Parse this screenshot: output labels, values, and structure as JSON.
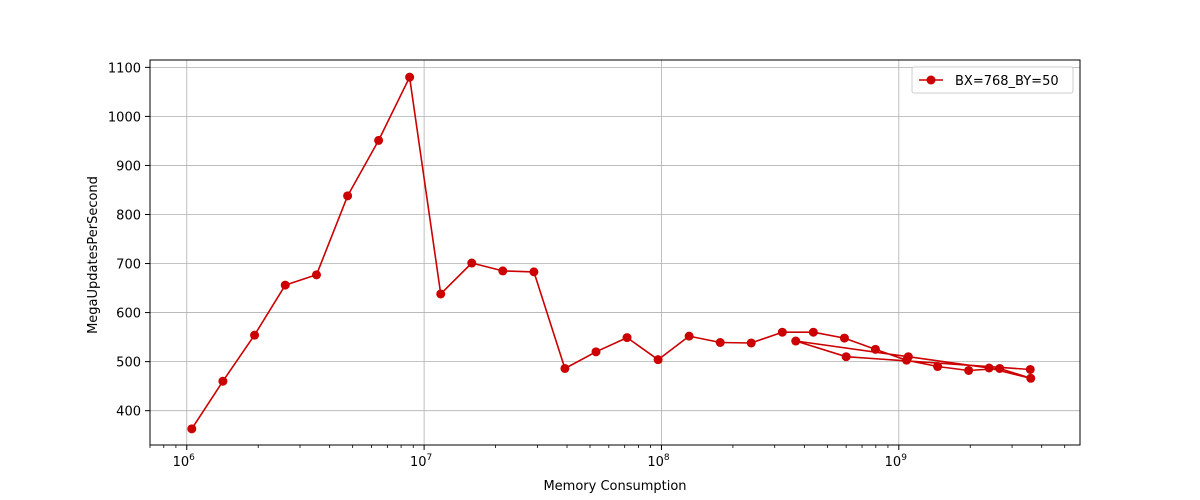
{
  "chart_data": {
    "type": "line",
    "title": "",
    "xlabel": "Memory Consumption",
    "ylabel": "MegaUpdatesPerSecond",
    "xscale": "log",
    "xlim": [
      700000,
      5800000000
    ],
    "ylim": [
      330,
      1115
    ],
    "grid": true,
    "legend_position": "top-right",
    "x_ticks": [
      {
        "value": 1000000,
        "base": "10",
        "exp": "6"
      },
      {
        "value": 10000000,
        "base": "10",
        "exp": "7"
      },
      {
        "value": 100000000,
        "base": "10",
        "exp": "8"
      },
      {
        "value": 1000000000,
        "base": "10",
        "exp": "9"
      }
    ],
    "y_ticks": [
      400,
      500,
      600,
      700,
      800,
      900,
      1000,
      1100
    ],
    "series": [
      {
        "name": "BX=768_BY=50",
        "color": "#cc0000",
        "x": [
          1050000,
          1420000,
          1930000,
          2600000,
          3520000,
          4760000,
          6430000,
          8690000,
          11750000,
          15880000,
          21460000,
          29010000,
          39200000,
          52990000,
          71620000,
          96800000,
          130800000,
          176800000,
          238900000,
          323000000,
          436500000,
          590000000,
          797300000,
          1078000000,
          1457000000,
          1969000000,
          2661000000,
          3597000000,
          2402000000,
          1097000000,
          368000000,
          600000000,
          3580000000
        ],
        "y": [
          363,
          460,
          554,
          656,
          677,
          838,
          951,
          1080,
          638,
          701,
          685,
          683,
          486,
          520,
          549,
          504,
          552,
          539,
          538,
          560,
          560,
          548,
          525,
          503,
          490,
          482,
          486,
          466,
          487,
          510,
          542,
          510,
          484
        ]
      }
    ]
  }
}
